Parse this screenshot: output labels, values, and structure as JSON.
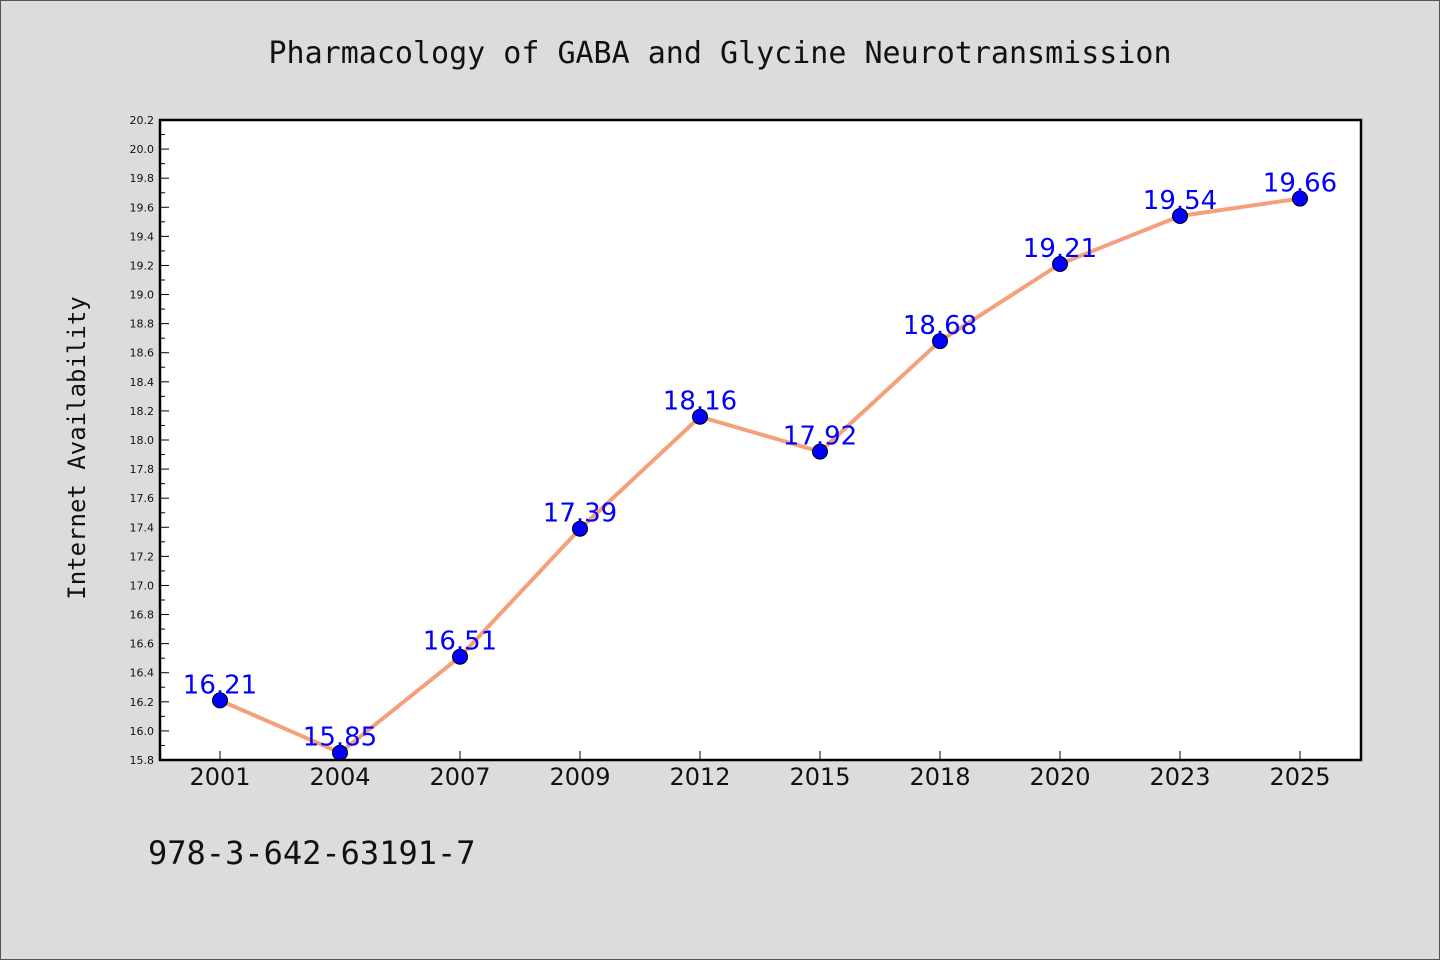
{
  "chart_data": {
    "type": "line",
    "title": "Pharmacology of GABA and Glycine Neurotransmission",
    "xlabel": "",
    "ylabel": "Internet Availability",
    "categories": [
      "2001",
      "2004",
      "2007",
      "2009",
      "2012",
      "2015",
      "2018",
      "2020",
      "2023",
      "2025"
    ],
    "series": [
      {
        "values": [
          16.21,
          15.85,
          16.51,
          17.39,
          18.16,
          17.92,
          18.68,
          19.21,
          19.54,
          19.66
        ],
        "labels": [
          "16.21",
          "15.85",
          "16.51",
          "17.39",
          "18.16",
          "17.92",
          "18.68",
          "19.21",
          "19.54",
          "19.66"
        ],
        "line_color": "#f4a07a",
        "marker_color": "#0000ff"
      }
    ],
    "ylim": [
      15.8,
      20.2
    ],
    "y_ticks": [
      "15.8",
      "16.0",
      "16.2",
      "16.4",
      "16.6",
      "16.8",
      "17.0",
      "17.2",
      "17.4",
      "17.6",
      "17.8",
      "18.0",
      "18.2",
      "18.4",
      "18.6",
      "18.8",
      "19.0",
      "19.2",
      "19.4",
      "19.6",
      "19.8",
      "20.0",
      "20.2"
    ],
    "grid": false,
    "data_labels": true
  },
  "footer": {
    "isbn": "978-3-642-63191-7"
  }
}
